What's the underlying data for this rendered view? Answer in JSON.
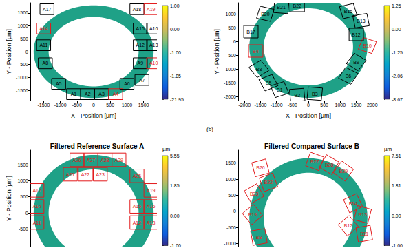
{
  "figure_label": "(b)",
  "chart_data": [
    {
      "type": "surface_map",
      "x_label": "X - Position [µm]",
      "y_label": "Y - Position [µm]",
      "xlim": [
        -1900,
        1900
      ],
      "ylim": [
        -1900,
        1900
      ],
      "xticks": [
        -1500,
        -1000,
        -500,
        0,
        500,
        1000,
        1500
      ],
      "yticks": [
        -1500,
        -1000,
        -500,
        0,
        500,
        1000,
        1500
      ],
      "ring": {
        "center": [
          0,
          0
        ],
        "inner_radius": 1350,
        "outer_radius": 1800,
        "color": "#1fa187"
      },
      "regions": [
        {
          "label": "A1",
          "center": [
            -600,
            -1650
          ],
          "size": 420,
          "angle": 0,
          "color": "#000000"
        },
        {
          "label": "A2",
          "center": [
            -180,
            -1650
          ],
          "size": 420,
          "angle": 0,
          "color": "#000000"
        },
        {
          "label": "A3",
          "center": [
            240,
            -1650
          ],
          "size": 420,
          "angle": 0,
          "color": "#000000"
        },
        {
          "label": "A4",
          "center": [
            660,
            -1650
          ],
          "size": 420,
          "angle": 0,
          "color": "#e31a1c"
        },
        {
          "label": "A5",
          "center": [
            -1050,
            -1250
          ],
          "size": 420,
          "angle": 0,
          "color": "#000000"
        },
        {
          "label": "A6",
          "center": [
            1000,
            -1250
          ],
          "size": 420,
          "angle": 0,
          "color": "#000000"
        },
        {
          "label": "A7",
          "center": [
            1450,
            -1100
          ],
          "size": 420,
          "angle": 0,
          "color": "#000000"
        },
        {
          "label": "A8",
          "center": [
            -1450,
            -450
          ],
          "size": 420,
          "angle": 0,
          "color": "#000000"
        },
        {
          "label": "A9",
          "center": [
            1400,
            -450
          ],
          "size": 420,
          "angle": 0,
          "color": "#000000"
        },
        {
          "label": "A10",
          "center": [
            1800,
            -450
          ],
          "size": 420,
          "angle": 0,
          "color": "#e31a1c"
        },
        {
          "label": "A11",
          "center": [
            -1500,
            250
          ],
          "size": 420,
          "angle": 0,
          "color": "#000000"
        },
        {
          "label": "A12",
          "center": [
            1400,
            250
          ],
          "size": 420,
          "angle": 0,
          "color": "#000000"
        },
        {
          "label": "A13",
          "center": [
            1800,
            250
          ],
          "size": 420,
          "angle": 0,
          "color": "#000000"
        },
        {
          "label": "A14",
          "center": [
            -1500,
            900
          ],
          "size": 420,
          "angle": 0,
          "color": "#e31a1c"
        },
        {
          "label": "A15",
          "center": [
            1400,
            900
          ],
          "size": 420,
          "angle": 0,
          "color": "#000000"
        },
        {
          "label": "A16",
          "center": [
            1800,
            900
          ],
          "size": 420,
          "angle": 0,
          "color": "#000000"
        },
        {
          "label": "A17",
          "center": [
            -1400,
            1650
          ],
          "size": 420,
          "angle": 0,
          "color": "#000000"
        },
        {
          "label": "A18",
          "center": [
            1300,
            1650
          ],
          "size": 420,
          "angle": 0,
          "color": "#000000"
        },
        {
          "label": "A19",
          "center": [
            1720,
            1650
          ],
          "size": 420,
          "angle": 0,
          "color": "#e31a1c"
        }
      ],
      "colorbar": {
        "range": [
          -21.95,
          1.0
        ],
        "ticks": [
          -21.95,
          -1.85,
          {
            "value": -1,
            "label": "-1.00"
          },
          {
            "value": 0,
            "label": "0.00"
          },
          {
            "value": 1,
            "label": "1.00"
          }
        ]
      }
    },
    {
      "type": "surface_map",
      "x_label": "X - Position [µm]",
      "y_label": "Y - Position [µm]",
      "xlim": [
        -2200,
        2200
      ],
      "ylim": [
        -2150,
        1400
      ],
      "xticks": [
        -2000,
        -1500,
        -1000,
        -500,
        0,
        500,
        1000,
        1500,
        2000
      ],
      "yticks": [
        -2000,
        -1500,
        -1000,
        -500,
        0,
        500,
        1000
      ],
      "ring": {
        "center": [
          0,
          -200
        ],
        "inner_radius": 1400,
        "outer_radius": 1850,
        "color": "#1fa187"
      },
      "regions": [
        {
          "label": "B1",
          "center": [
            -900,
            -1750
          ],
          "size": 450,
          "angle": 20,
          "color": "#000000"
        },
        {
          "label": "B2",
          "center": [
            -350,
            -1950
          ],
          "size": 450,
          "angle": 5,
          "color": "#000000"
        },
        {
          "label": "B3",
          "center": [
            200,
            -1900
          ],
          "size": 450,
          "angle": -5,
          "color": "#000000"
        },
        {
          "label": "B4",
          "center": [
            -1650,
            -350
          ],
          "size": 450,
          "angle": 0,
          "color": "#e31a1c"
        },
        {
          "label": "B5",
          "center": [
            -1250,
            -1500
          ],
          "size": 450,
          "angle": 25,
          "color": "#000000"
        },
        {
          "label": "B6",
          "center": [
            1250,
            -1250
          ],
          "size": 450,
          "angle": -30,
          "color": "#000000"
        },
        {
          "label": "B8",
          "center": [
            -1550,
            -1000
          ],
          "size": 450,
          "angle": 35,
          "color": "#000000"
        },
        {
          "label": "B9",
          "center": [
            1500,
            -750
          ],
          "size": 450,
          "angle": -35,
          "color": "#000000"
        },
        {
          "label": "B10",
          "center": [
            1850,
            -150
          ],
          "size": 450,
          "angle": -20,
          "color": "#e31a1c"
        },
        {
          "label": "B12",
          "center": [
            1500,
            250
          ],
          "size": 450,
          "angle": 0,
          "color": "#000000"
        },
        {
          "label": "B13",
          "center": [
            1650,
            750
          ],
          "size": 450,
          "angle": 10,
          "color": "#000000"
        },
        {
          "label": "B15",
          "center": [
            1250,
            1100
          ],
          "size": 450,
          "angle": 15,
          "color": "#000000"
        },
        {
          "label": "B17",
          "center": [
            -1800,
            350
          ],
          "size": 450,
          "angle": 0,
          "color": "#000000"
        },
        {
          "label": "B20",
          "center": [
            -1350,
            1000
          ],
          "size": 450,
          "angle": -15,
          "color": "#000000"
        },
        {
          "label": "B21",
          "center": [
            -850,
            1250
          ],
          "size": 450,
          "angle": -5,
          "color": "#000000"
        },
        {
          "label": "B22",
          "center": [
            -350,
            1300
          ],
          "size": 450,
          "angle": 0,
          "color": "#000000"
        }
      ],
      "colorbar": {
        "range": [
          -8.67,
          1.25
        ],
        "ticks": [
          -8.67,
          -2.06,
          -1.25,
          {
            "value": 0,
            "label": "0.00"
          },
          1.25
        ]
      }
    },
    {
      "type": "surface_map",
      "title": "Filtered Reference Surface A",
      "y_label": "Y - Position [µm]",
      "tick_labels": "y",
      "xlim": [
        -1900,
        1900
      ],
      "ylim": [
        -1050,
        1950
      ],
      "xticks": [
        -1500,
        -1000,
        -500,
        0,
        500,
        1000,
        1500
      ],
      "yticks": [
        -500,
        0,
        500,
        1000,
        1500
      ],
      "ring": {
        "center": [
          0,
          0
        ],
        "inner_radius": 1350,
        "outer_radius": 1800,
        "color": "#1fa187"
      },
      "regions": [
        {
          "label": "A26",
          "center": [
            -500,
            1650
          ],
          "size": 420,
          "angle": 0,
          "color": "#e31a1c"
        },
        {
          "label": "A27",
          "center": [
            -80,
            1650
          ],
          "size": 420,
          "angle": 0,
          "color": "#e31a1c"
        },
        {
          "label": "A28",
          "center": [
            340,
            1650
          ],
          "size": 420,
          "angle": 0,
          "color": "#e31a1c"
        },
        {
          "label": "A29",
          "center": [
            760,
            1650
          ],
          "size": 420,
          "angle": 0,
          "color": "#e31a1c"
        },
        {
          "label": "A21",
          "center": [
            -700,
            1200
          ],
          "size": 420,
          "angle": 0,
          "color": "#e31a1c"
        },
        {
          "label": "A22",
          "center": [
            -250,
            1200
          ],
          "size": 420,
          "angle": 0,
          "color": "#e31a1c"
        },
        {
          "label": "A23",
          "center": [
            200,
            1200
          ],
          "size": 420,
          "angle": 0,
          "color": "#e31a1c"
        },
        {
          "label": "A25",
          "center": [
            1300,
            1150
          ],
          "size": 420,
          "angle": 0,
          "color": "#e31a1c"
        },
        {
          "label": "A17",
          "center": [
            -1700,
            700
          ],
          "size": 420,
          "angle": 0,
          "color": "#e31a1c"
        },
        {
          "label": "A14",
          "center": [
            -1700,
            200
          ],
          "size": 420,
          "angle": 0,
          "color": "#e31a1c"
        },
        {
          "label": "A11",
          "center": [
            -1700,
            -300
          ],
          "size": 420,
          "angle": 0,
          "color": "#e31a1c"
        },
        {
          "label": "A19",
          "center": [
            1720,
            700
          ],
          "size": 420,
          "angle": 0,
          "color": "#e31a1c"
        },
        {
          "label": "A16",
          "center": [
            1720,
            200
          ],
          "size": 420,
          "angle": 0,
          "color": "#e31a1c"
        },
        {
          "label": "A15",
          "center": [
            1300,
            200
          ],
          "size": 420,
          "angle": 0,
          "color": "#e31a1c"
        },
        {
          "label": "A13",
          "center": [
            1720,
            -300
          ],
          "size": 420,
          "angle": 0,
          "color": "#e31a1c"
        },
        {
          "label": "A12",
          "center": [
            1300,
            -300
          ],
          "size": 420,
          "angle": 0,
          "color": "#e31a1c"
        }
      ],
      "colorbar": {
        "unit": "µm",
        "range": [
          -1.0,
          5.55
        ],
        "ticks": [
          {
            "value": -1,
            "label": "-1.00"
          },
          {
            "value": 0,
            "label": "0.00"
          },
          1.85,
          5.55
        ]
      }
    },
    {
      "type": "surface_map",
      "title": "Filtered Compared Surface B",
      "tick_labels": "y",
      "xlim": [
        -2200,
        2200
      ],
      "ylim": [
        -1100,
        1900
      ],
      "xticks": [
        -2000,
        -1500,
        -1000,
        -500,
        0,
        500,
        1000,
        1500,
        2000
      ],
      "yticks": [
        -1000,
        -500,
        0,
        500,
        1000,
        1500
      ],
      "ring": {
        "center": [
          0,
          -200
        ],
        "inner_radius": 1400,
        "outer_radius": 1850,
        "color": "#1fa187"
      },
      "regions": [
        {
          "label": "B26",
          "center": [
            -1500,
            1350
          ],
          "size": 450,
          "angle": 15,
          "color": "#e31a1c"
        },
        {
          "label": "B22",
          "center": [
            -1250,
            900
          ],
          "size": 450,
          "angle": 20,
          "color": "#e31a1c"
        },
        {
          "label": "B23",
          "center": [
            -1700,
            550
          ],
          "size": 450,
          "angle": 30,
          "color": "#e31a1c"
        },
        {
          "label": "B19",
          "center": [
            -1750,
            -100
          ],
          "size": 450,
          "angle": 40,
          "color": "#e31a1c"
        },
        {
          "label": "B8",
          "center": [
            -1550,
            -800
          ],
          "size": 450,
          "angle": 10,
          "color": "#e31a1c"
        },
        {
          "label": "B27",
          "center": [
            200,
            1550
          ],
          "size": 450,
          "angle": -20,
          "color": "#e31a1c"
        },
        {
          "label": "B28",
          "center": [
            650,
            1450
          ],
          "size": 450,
          "angle": -30,
          "color": "#e31a1c"
        },
        {
          "label": "B29",
          "center": [
            1100,
            1250
          ],
          "size": 450,
          "angle": -35,
          "color": "#e31a1c"
        },
        {
          "label": "B14",
          "center": [
            1400,
            250
          ],
          "size": 450,
          "angle": 25,
          "color": "#e31a1c"
        },
        {
          "label": "B13",
          "center": [
            1700,
            -100
          ],
          "size": 450,
          "angle": -15,
          "color": "#e31a1c"
        },
        {
          "label": "B12",
          "center": [
            1250,
            -450
          ],
          "size": 450,
          "angle": 40,
          "color": "#e31a1c"
        },
        {
          "label": "B11",
          "center": [
            1750,
            -700
          ],
          "size": 450,
          "angle": 10,
          "color": "#e31a1c"
        }
      ],
      "colorbar": {
        "unit": "µm",
        "range": [
          -1.0,
          7.51
        ],
        "ticks": [
          {
            "value": -1,
            "label": "-1.00"
          },
          {
            "value": 0,
            "label": "0.00"
          },
          1.81,
          7.51
        ]
      }
    }
  ]
}
